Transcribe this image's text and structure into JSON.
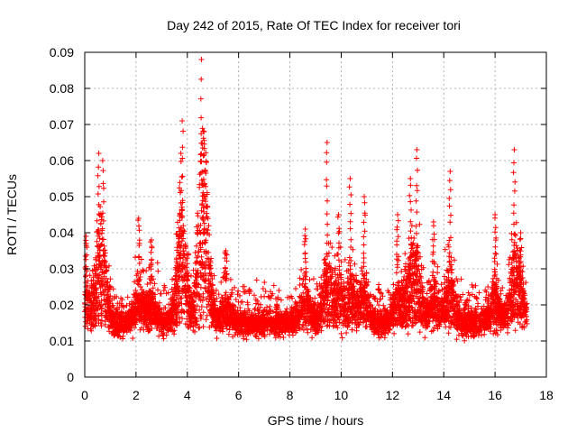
{
  "chart_data": {
    "type": "scatter",
    "title": "Day 242 of 2015, Rate Of TEC Index for receiver tori",
    "xlabel": "GPS time / hours",
    "ylabel": "ROTI / TECUs",
    "xlim": [
      0,
      18
    ],
    "ylim": [
      0,
      0.09
    ],
    "xticks": [
      0,
      2,
      4,
      6,
      8,
      10,
      12,
      14,
      16,
      18
    ],
    "yticks": [
      0,
      0.01,
      0.02,
      0.03,
      0.04,
      0.05,
      0.06,
      0.07,
      0.08,
      0.09
    ],
    "xtick_labels": [
      "0",
      "2",
      "4",
      "6",
      "8",
      "10",
      "12",
      "14",
      "16",
      "18"
    ],
    "ytick_labels": [
      "0",
      "0.01",
      "0.02",
      "0.03",
      "0.04",
      "0.05",
      "0.06",
      "0.07",
      "0.08",
      "0.09"
    ],
    "grid": true,
    "marker": "+",
    "color": "#ff0000",
    "series": [
      {
        "name": "ROTI",
        "x_range": [
          0,
          17.25
        ],
        "baseline_band": [
          0.005,
          0.028
        ],
        "typical": 0.015,
        "approx_point_count": 6000,
        "peaks": [
          {
            "x": 0.05,
            "y": 0.039
          },
          {
            "x": 0.55,
            "y": 0.062
          },
          {
            "x": 0.7,
            "y": 0.06
          },
          {
            "x": 2.1,
            "y": 0.044
          },
          {
            "x": 2.6,
            "y": 0.038
          },
          {
            "x": 3.8,
            "y": 0.071
          },
          {
            "x": 3.75,
            "y": 0.062
          },
          {
            "x": 4.55,
            "y": 0.088
          },
          {
            "x": 4.65,
            "y": 0.068
          },
          {
            "x": 4.7,
            "y": 0.057
          },
          {
            "x": 5.5,
            "y": 0.035
          },
          {
            "x": 8.6,
            "y": 0.041
          },
          {
            "x": 9.45,
            "y": 0.065
          },
          {
            "x": 9.9,
            "y": 0.045
          },
          {
            "x": 10.35,
            "y": 0.055
          },
          {
            "x": 10.9,
            "y": 0.05
          },
          {
            "x": 12.2,
            "y": 0.045
          },
          {
            "x": 12.7,
            "y": 0.055
          },
          {
            "x": 12.95,
            "y": 0.063
          },
          {
            "x": 13.6,
            "y": 0.043
          },
          {
            "x": 14.25,
            "y": 0.057
          },
          {
            "x": 16.0,
            "y": 0.045
          },
          {
            "x": 16.75,
            "y": 0.063
          },
          {
            "x": 17.0,
            "y": 0.04
          }
        ]
      }
    ]
  }
}
